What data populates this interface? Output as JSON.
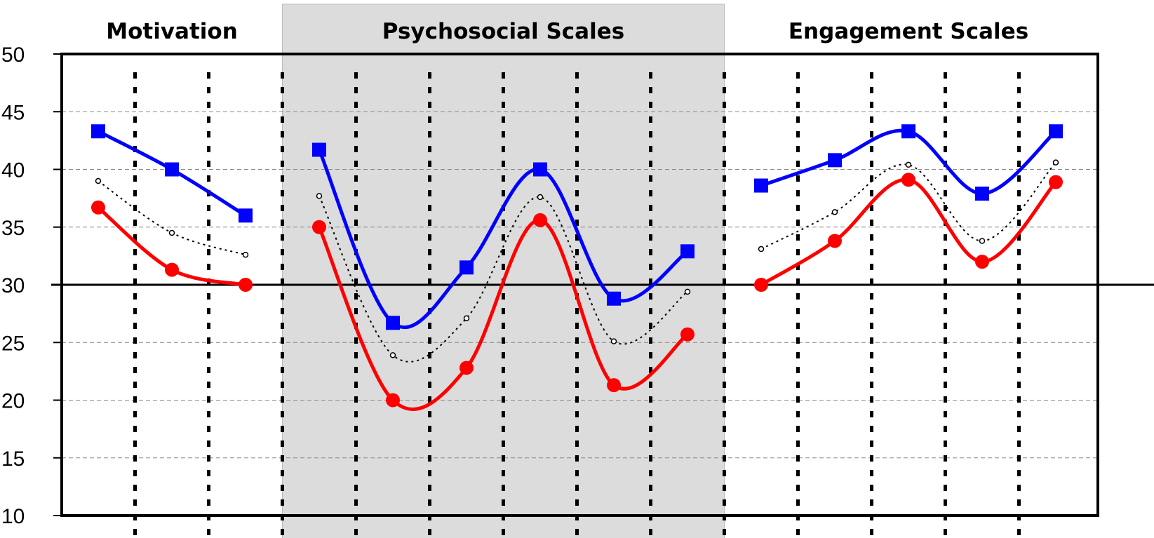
{
  "chart_data": {
    "type": "line",
    "title": "",
    "xlabel": "",
    "ylabel": "",
    "ylim": [
      10,
      50
    ],
    "y_ticks": [
      "50",
      "45",
      "40",
      "35",
      "30",
      "25",
      "20",
      "15",
      "10"
    ],
    "reference_line_y": 30,
    "grid": "horizontal dashed gridlines, vertical dotted category separators",
    "groups": [
      {
        "title": "Motivation",
        "count": 3,
        "shaded": false
      },
      {
        "title": "Psychosocial Scales",
        "count": 6,
        "shaded": true
      },
      {
        "title": "Engagement Scales",
        "count": 5,
        "shaded": false
      }
    ],
    "series": [
      {
        "color": "#0000FF",
        "marker": "square",
        "line": "solid",
        "values": [
          [
            43.3,
            40.0,
            36.0
          ],
          [
            41.7,
            26.7,
            31.5,
            40.0,
            28.8,
            32.9
          ],
          [
            38.6,
            40.8,
            43.3,
            37.9,
            43.3
          ]
        ]
      },
      {
        "color": "#000000",
        "marker": "small-circle",
        "line": "dotted",
        "values": [
          [
            39.0,
            34.5,
            32.6
          ],
          [
            37.7,
            23.9,
            27.1,
            37.6,
            25.1,
            29.4
          ],
          [
            33.1,
            36.3,
            40.4,
            33.8,
            40.6
          ]
        ]
      },
      {
        "color": "#FF0000",
        "marker": "circle",
        "line": "solid",
        "values": [
          [
            36.7,
            31.3,
            30.0
          ],
          [
            35.0,
            20.0,
            22.8,
            35.6,
            21.3,
            25.7
          ],
          [
            30.0,
            33.8,
            39.1,
            32.0,
            38.9
          ]
        ]
      }
    ]
  }
}
